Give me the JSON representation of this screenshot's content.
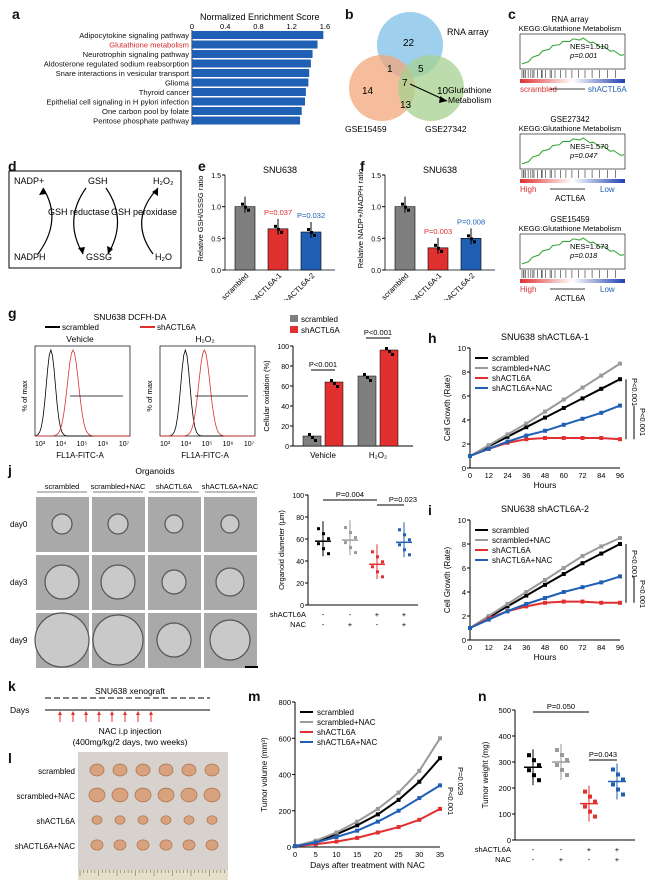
{
  "panels": {
    "a": {
      "label": "a",
      "title": "Normalized Enrichment Score",
      "ticks": [
        "0",
        "0.4",
        "0.8",
        "1.2",
        "1.6"
      ],
      "pathways": [
        "Adipocytokine signaling pathway",
        "Glutathione metabolism",
        "Neurotrophin signaling pathway",
        "Aldosterone regulated sodium reabsorption",
        "Snare interactions in vesicular transport",
        "Glioma",
        "Thyroid cancer",
        "Epithelial cell signaling in H pylori infection",
        "One carbon pool by folate",
        "Pentose phosphate pathway"
      ],
      "highlight_color": "#d62728",
      "bar_color": "#1f5fb4"
    },
    "b": {
      "label": "b",
      "sets": [
        "RNA array",
        "GSE15459",
        "GSE27342"
      ],
      "counts": [
        "22",
        "1",
        "5",
        "7",
        "14",
        "13",
        "10"
      ],
      "annotation": "Glutathione Metabolism"
    },
    "c": {
      "label": "c",
      "gsea": [
        {
          "dataset": "RNA array",
          "pathway": "KEGG:Glutathione Metabolism",
          "nes": "NES=1.510",
          "p": "p=0.001",
          "left": "scrambled",
          "right": "shACTL6A"
        },
        {
          "dataset": "GSE27342",
          "pathway": "KEGG:Glutathione Metabolism",
          "nes": "NES=1.570",
          "p": "p=0.047",
          "left": "High",
          "right": "Low",
          "axis": "ACTL6A"
        },
        {
          "dataset": "GSE15459",
          "pathway": "KEGG:Glutathione Metabolism",
          "nes": "NES=1.673",
          "p": "p=0.018",
          "left": "High",
          "right": "Low",
          "axis": "ACTL6A"
        }
      ]
    },
    "d": {
      "label": "d",
      "nodes": [
        "NADP+",
        "GSH",
        "H₂O₂",
        "GSH reductase",
        "GSH peroxidase",
        "NADPH",
        "GSSG",
        "H₂O"
      ]
    },
    "e": {
      "label": "e",
      "title": "SNU638",
      "ylabel": "Relative GSH/GSSG ratio",
      "categories": [
        "scrambled",
        "shACTL6A-1",
        "shACTL6A-2"
      ],
      "pvals": [
        "P=0.037",
        "P=0.032"
      ],
      "ticks": [
        "0.0",
        "0.5",
        "1.0",
        "1.5"
      ]
    },
    "f": {
      "label": "f",
      "title": "SNU638",
      "ylabel": "Relative NADP+/NADPH ratio",
      "categories": [
        "scrambled",
        "shACTL6A-1",
        "shACTL6A-2"
      ],
      "pvals": [
        "P=0.003",
        "P=0.008"
      ],
      "ticks": [
        "0.0",
        "0.5",
        "1.0",
        "1.5"
      ]
    },
    "g": {
      "label": "g",
      "title": "SNU638 DCFH-DA",
      "legend": [
        "scrambled",
        "shACTL6A"
      ],
      "sub": [
        "Vehicle",
        "H₂O₂"
      ],
      "xlabel": "FL1A-FITC-A",
      "ylabel": "% of max",
      "xticks": [
        "10³",
        "10⁴",
        "10⁵",
        "10⁶",
        "10⁷"
      ],
      "bar_ylabel": "Cellular oxidation (%)",
      "bar_groups": [
        "Vehicle",
        "H₂O₂"
      ],
      "bar_legend": [
        "scrambled",
        "shACTL6A"
      ],
      "bar_p": [
        "P<0.001",
        "P<0.001"
      ],
      "bar_ticks": [
        "0",
        "20",
        "40",
        "60",
        "80",
        "100"
      ]
    },
    "h": {
      "label": "h",
      "title": "SNU638  shACTL6A-1",
      "i_title": "SNU638  shACTL6A-2",
      "legend": [
        "scrambled",
        "scrambled+NAC",
        "shACTL6A",
        "shACTL6A+NAC"
      ],
      "xlabel": "Hours",
      "ylabel": "Cell Growth (Rate)",
      "xticks": [
        "0",
        "12",
        "24",
        "36",
        "48",
        "60",
        "72",
        "84",
        "96"
      ],
      "yticks": [
        "0",
        "2",
        "4",
        "6",
        "8",
        "10"
      ],
      "p": [
        "P<0.001",
        "P<0.001"
      ]
    },
    "j": {
      "label": "j",
      "title": "Organoids",
      "cols": [
        "scrambled",
        "scrambled+NAC",
        "shACTL6A",
        "shACTL6A+NAC"
      ],
      "rows": [
        "day0",
        "day3",
        "day9"
      ],
      "ylabel": "Organoid diameter (μm)",
      "yticks": [
        "0",
        "20",
        "40",
        "60",
        "80",
        "100"
      ],
      "p": [
        "P=0.004",
        "P=0.023"
      ],
      "row_sh": [
        "shACTL6A",
        "-",
        "-",
        "+",
        "+"
      ],
      "row_nac": [
        "NAC",
        "-",
        "+",
        "-",
        "+"
      ]
    },
    "k": {
      "label": "k",
      "title": "SNU638 xenograft",
      "days": "Days",
      "inj": "NAC i.p injection",
      "dose": "(400mg/kg/2 days, two weeks)"
    },
    "l": {
      "label": "l",
      "rows": [
        "scrambled",
        "scrambled+NAC",
        "shACTL6A",
        "shACTL6A+NAC"
      ]
    },
    "m": {
      "label": "m",
      "ylabel": "Tumor volume (mm³)",
      "xlabel": "Days after treatment with NAC",
      "legend": [
        "scrambled",
        "scrambled+NAC",
        "shACTL6A",
        "shACTL6A+NAC"
      ],
      "xticks": [
        "0",
        "5",
        "10",
        "15",
        "20",
        "25",
        "30",
        "35"
      ],
      "yticks": [
        "0",
        "200",
        "400",
        "600",
        "800"
      ],
      "p": [
        "P<0.001",
        "P=0.029"
      ]
    },
    "n": {
      "label": "n",
      "ylabel": "Tumor weight (mg)",
      "yticks": [
        "0",
        "100",
        "200",
        "300",
        "400",
        "500"
      ],
      "p": [
        "P=0.050",
        "P=0.043"
      ],
      "row_sh": [
        "shACTL6A",
        "-",
        "-",
        "+",
        "+"
      ],
      "row_nac": [
        "NAC",
        "-",
        "+",
        "-",
        "+"
      ]
    }
  },
  "chart_data": [
    {
      "type": "bar",
      "title": "Normalized Enrichment Score",
      "categories": [
        "Adipocytokine signaling pathway",
        "Glutathione metabolism",
        "Neurotrophin signaling pathway",
        "Aldosterone regulated sodium reabsorption",
        "Snare interactions in vesicular transport",
        "Glioma",
        "Thyroid cancer",
        "Epithelial cell signaling in H pylori infection",
        "One carbon pool by folate",
        "Pentose phosphate pathway"
      ],
      "values": [
        1.58,
        1.51,
        1.45,
        1.43,
        1.41,
        1.4,
        1.37,
        1.36,
        1.32,
        1.3
      ],
      "xlim": [
        0,
        1.6
      ]
    },
    {
      "type": "bar",
      "title": "SNU638",
      "ylabel": "Relative GSH/GSSG ratio",
      "categories": [
        "scrambled",
        "shACTL6A-1",
        "shACTL6A-2"
      ],
      "values": [
        1.0,
        0.65,
        0.6
      ],
      "ylim": [
        0,
        1.5
      ]
    },
    {
      "type": "bar",
      "title": "SNU638",
      "ylabel": "Relative NADP+/NADPH ratio",
      "categories": [
        "scrambled",
        "shACTL6A-1",
        "shACTL6A-2"
      ],
      "values": [
        1.0,
        0.35,
        0.5
      ],
      "ylim": [
        0,
        1.5
      ]
    },
    {
      "type": "bar",
      "ylabel": "Cellular oxidation (%)",
      "categories": [
        "Vehicle",
        "H₂O₂"
      ],
      "series": [
        {
          "name": "scrambled",
          "values": [
            10,
            70
          ]
        },
        {
          "name": "shACTL6A",
          "values": [
            64,
            96
          ]
        }
      ],
      "ylim": [
        0,
        100
      ]
    },
    {
      "type": "line",
      "title": "SNU638  shACTL6A-1",
      "x": [
        0,
        12,
        24,
        36,
        48,
        60,
        72,
        84,
        96
      ],
      "series": [
        {
          "name": "scrambled",
          "values": [
            1,
            1.8,
            2.6,
            3.4,
            4.2,
            5.0,
            5.8,
            6.6,
            7.4
          ]
        },
        {
          "name": "scrambled+NAC",
          "values": [
            1,
            1.9,
            2.8,
            3.7,
            4.7,
            5.7,
            6.7,
            7.7,
            8.7
          ]
        },
        {
          "name": "shACTL6A",
          "values": [
            1,
            1.6,
            2.1,
            2.4,
            2.5,
            2.5,
            2.5,
            2.5,
            2.4
          ]
        },
        {
          "name": "shACTL6A+NAC",
          "values": [
            1,
            1.6,
            2.2,
            2.7,
            3.1,
            3.6,
            4.1,
            4.6,
            5.2
          ]
        }
      ],
      "ylim": [
        0,
        10
      ]
    },
    {
      "type": "line",
      "title": "SNU638  shACTL6A-2",
      "x": [
        0,
        12,
        24,
        36,
        48,
        60,
        72,
        84,
        96
      ],
      "series": [
        {
          "name": "scrambled",
          "values": [
            1,
            1.9,
            2.8,
            3.7,
            4.6,
            5.5,
            6.4,
            7.2,
            8.0
          ]
        },
        {
          "name": "scrambled+NAC",
          "values": [
            1,
            2.0,
            3.0,
            4.0,
            5.0,
            6.0,
            7.0,
            7.8,
            8.5
          ]
        },
        {
          "name": "shACTL6A",
          "values": [
            1,
            1.8,
            2.4,
            2.8,
            3.1,
            3.2,
            3.2,
            3.1,
            3.1
          ]
        },
        {
          "name": "shACTL6A+NAC",
          "values": [
            1,
            1.7,
            2.4,
            3.0,
            3.5,
            4.0,
            4.4,
            4.8,
            5.3
          ]
        }
      ],
      "ylim": [
        0,
        10
      ]
    },
    {
      "type": "scatter",
      "ylabel": "Organoid diameter (μm)",
      "categories": [
        "scrambled",
        "scrambled+NAC",
        "shACTL6A",
        "shACTL6A+NAC"
      ],
      "values": [
        58,
        59,
        37,
        57
      ],
      "ylim": [
        0,
        100
      ]
    },
    {
      "type": "line",
      "xlabel": "Days after treatment with NAC",
      "ylabel": "Tumor volume (mm³)",
      "x": [
        0,
        5,
        10,
        15,
        20,
        25,
        30,
        35
      ],
      "series": [
        {
          "name": "scrambled",
          "values": [
            5,
            30,
            70,
            120,
            180,
            260,
            360,
            490
          ]
        },
        {
          "name": "scrambled+NAC",
          "values": [
            5,
            35,
            80,
            140,
            210,
            300,
            420,
            600
          ]
        },
        {
          "name": "shACTL6A",
          "values": [
            5,
            15,
            30,
            50,
            80,
            110,
            150,
            210
          ]
        },
        {
          "name": "shACTL6A+NAC",
          "values": [
            5,
            25,
            55,
            90,
            140,
            200,
            270,
            340
          ]
        }
      ],
      "ylim": [
        0,
        800
      ]
    },
    {
      "type": "scatter",
      "ylabel": "Tumor weight (mg)",
      "categories": [
        "scrambled",
        "scrambled+NAC",
        "shACTL6A",
        "shACTL6A+NAC"
      ],
      "values": [
        280,
        300,
        140,
        225
      ],
      "ylim": [
        0,
        500
      ]
    }
  ]
}
